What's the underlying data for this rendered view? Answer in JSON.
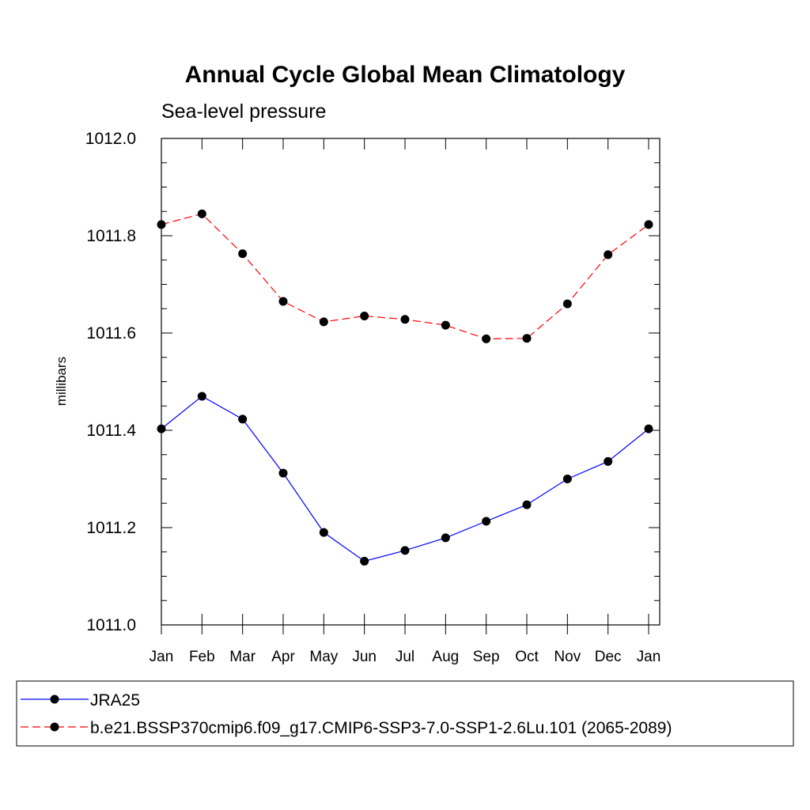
{
  "chart_data": {
    "type": "line",
    "title": "Annual Cycle Global Mean Climatology",
    "subtitle": "Sea-level pressure",
    "xlabel": "",
    "ylabel": "millibars",
    "ylim": [
      1011.0,
      1012.0
    ],
    "yticks": [
      "1011.0",
      "1011.2",
      "1011.4",
      "1011.6",
      "1011.8",
      "1012.0"
    ],
    "categories": [
      "Jan",
      "Feb",
      "Mar",
      "Apr",
      "May",
      "Jun",
      "Jul",
      "Aug",
      "Sep",
      "Oct",
      "Nov",
      "Dec",
      "Jan"
    ],
    "series": [
      {
        "name": "JRA25",
        "color": "#0000ff",
        "dashed": false,
        "values": [
          1011.403,
          1011.47,
          1011.423,
          1011.312,
          1011.19,
          1011.131,
          1011.153,
          1011.179,
          1011.213,
          1011.247,
          1011.3,
          1011.336,
          1011.403
        ]
      },
      {
        "name": "b.e21.BSSP370cmip6.f09_g17.CMIP6-SSP3-7.0-SSP1-2.6Lu.101 (2065-2089)",
        "color": "#ff0000",
        "dashed": true,
        "values": [
          1011.823,
          1011.845,
          1011.763,
          1011.665,
          1011.623,
          1011.635,
          1011.628,
          1011.616,
          1011.588,
          1011.589,
          1011.66,
          1011.761,
          1011.823
        ]
      }
    ],
    "grid": false,
    "legend_position": "bottom"
  }
}
